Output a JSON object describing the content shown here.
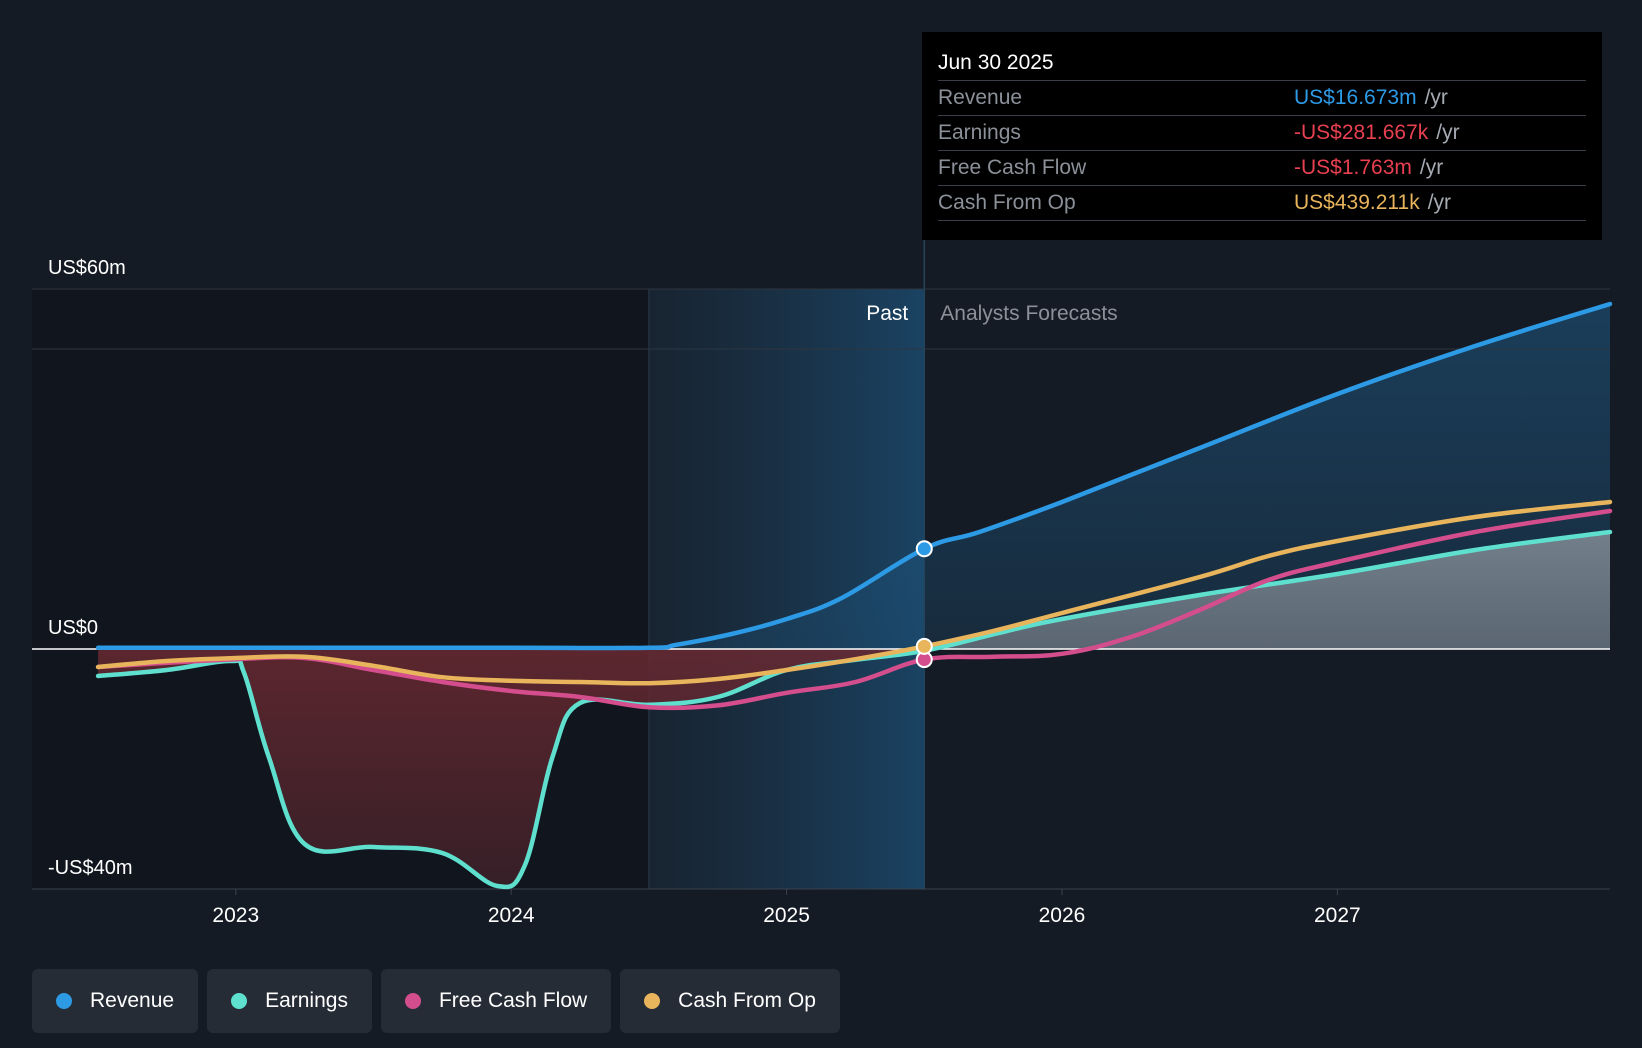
{
  "tooltip": {
    "date": "Jun 30 2025",
    "rows": [
      {
        "label": "Revenue",
        "value": "US$16.673m",
        "unit": "/yr",
        "color": "#2d9ae6"
      },
      {
        "label": "Earnings",
        "value": "-US$281.667k",
        "unit": "/yr",
        "color": "#e84050"
      },
      {
        "label": "Free Cash Flow",
        "value": "-US$1.763m",
        "unit": "/yr",
        "color": "#e84050"
      },
      {
        "label": "Cash From Op",
        "value": "US$439.211k",
        "unit": "/yr",
        "color": "#e8b45c"
      }
    ]
  },
  "legend": [
    {
      "label": "Revenue",
      "color": "#2d9ae6"
    },
    {
      "label": "Earnings",
      "color": "#5fe0cf"
    },
    {
      "label": "Free Cash Flow",
      "color": "#d44d8c"
    },
    {
      "label": "Cash From Op",
      "color": "#e8b45c"
    }
  ],
  "chart_data": {
    "type": "line",
    "title": "",
    "xlabel": "",
    "ylabel": "",
    "x_ticks": [
      "2023",
      "2024",
      "2025",
      "2026",
      "2027"
    ],
    "x_tick_values": [
      2023,
      2024,
      2025,
      2026,
      2027
    ],
    "xlim": [
      2022.26,
      2027.99
    ],
    "ylim": [
      -40,
      60
    ],
    "y_ticks": [
      {
        "value": 60,
        "label": "US$60m"
      },
      {
        "value": 0,
        "label": "US$0"
      },
      {
        "value": -40,
        "label": "-US$40m"
      }
    ],
    "gridlines": [
      60,
      50,
      0,
      -40
    ],
    "past_label": "Past",
    "forecast_label": "Analysts Forecasts",
    "past_start": 2024.5,
    "divider": 2025.5,
    "series": [
      {
        "name": "Revenue",
        "color": "#2d9ae6",
        "points": [
          [
            2022.5,
            0.2
          ],
          [
            2023,
            0.2
          ],
          [
            2024,
            0.2
          ],
          [
            2024.5,
            0.2
          ],
          [
            2024.6,
            0.7
          ],
          [
            2024.8,
            2.5
          ],
          [
            2025,
            5
          ],
          [
            2025.2,
            8.5
          ],
          [
            2025.5,
            16.7
          ],
          [
            2025.7,
            19.5
          ],
          [
            2026,
            24.5
          ],
          [
            2026.5,
            33.5
          ],
          [
            2027,
            42.5
          ],
          [
            2027.5,
            50.5
          ],
          [
            2027.99,
            57.5
          ]
        ]
      },
      {
        "name": "Earnings",
        "color": "#5fe0cf",
        "points": [
          [
            2022.5,
            -4.5
          ],
          [
            2022.75,
            -3.5
          ],
          [
            2022.98,
            -2
          ],
          [
            2023.03,
            -4
          ],
          [
            2023.12,
            -18
          ],
          [
            2023.25,
            -32.5
          ],
          [
            2023.5,
            -33
          ],
          [
            2023.75,
            -34
          ],
          [
            2023.95,
            -39.5
          ],
          [
            2024.05,
            -36
          ],
          [
            2024.15,
            -18
          ],
          [
            2024.25,
            -9
          ],
          [
            2024.5,
            -9.3
          ],
          [
            2024.75,
            -8
          ],
          [
            2025,
            -3.5
          ],
          [
            2025.25,
            -1.8
          ],
          [
            2025.5,
            -0.3
          ],
          [
            2025.8,
            3
          ],
          [
            2026,
            5
          ],
          [
            2026.5,
            9
          ],
          [
            2027,
            12.5
          ],
          [
            2027.5,
            16.5
          ],
          [
            2027.99,
            19.5
          ]
        ]
      },
      {
        "name": "Free Cash Flow",
        "color": "#d44d8c",
        "points": [
          [
            2022.5,
            -3
          ],
          [
            2022.75,
            -2.3
          ],
          [
            2023,
            -1.7
          ],
          [
            2023.25,
            -1.5
          ],
          [
            2023.5,
            -3.5
          ],
          [
            2023.75,
            -5.5
          ],
          [
            2024,
            -7
          ],
          [
            2024.25,
            -8
          ],
          [
            2024.5,
            -9.7
          ],
          [
            2024.75,
            -9.4
          ],
          [
            2025,
            -7.3
          ],
          [
            2025.25,
            -5.5
          ],
          [
            2025.5,
            -1.76
          ],
          [
            2025.75,
            -1.3
          ],
          [
            2026,
            -0.8
          ],
          [
            2026.25,
            2
          ],
          [
            2026.5,
            6.5
          ],
          [
            2026.75,
            11.5
          ],
          [
            2027,
            14.5
          ],
          [
            2027.5,
            19.5
          ],
          [
            2027.99,
            23
          ]
        ]
      },
      {
        "name": "Cash From Op",
        "color": "#e8b45c",
        "points": [
          [
            2022.5,
            -3
          ],
          [
            2022.75,
            -2
          ],
          [
            2023,
            -1.5
          ],
          [
            2023.25,
            -1.3
          ],
          [
            2023.5,
            -2.8
          ],
          [
            2023.75,
            -4.7
          ],
          [
            2024,
            -5.3
          ],
          [
            2024.25,
            -5.5
          ],
          [
            2024.5,
            -5.7
          ],
          [
            2024.75,
            -5
          ],
          [
            2025,
            -3.5
          ],
          [
            2025.25,
            -1.7
          ],
          [
            2025.5,
            0.44
          ],
          [
            2025.75,
            3
          ],
          [
            2026,
            6
          ],
          [
            2026.5,
            12
          ],
          [
            2026.75,
            15.5
          ],
          [
            2027,
            18
          ],
          [
            2027.5,
            22
          ],
          [
            2027.99,
            24.5
          ]
        ]
      }
    ],
    "highlight_points": [
      {
        "series": "Revenue",
        "x": 2025.5,
        "y": 16.7,
        "color": "#2d9ae6"
      },
      {
        "series": "Free Cash Flow",
        "x": 2025.5,
        "y": -1.76,
        "color": "#d44d8c"
      },
      {
        "series": "Cash From Op",
        "x": 2025.5,
        "y": 0.44,
        "color": "#e8b45c"
      }
    ]
  }
}
